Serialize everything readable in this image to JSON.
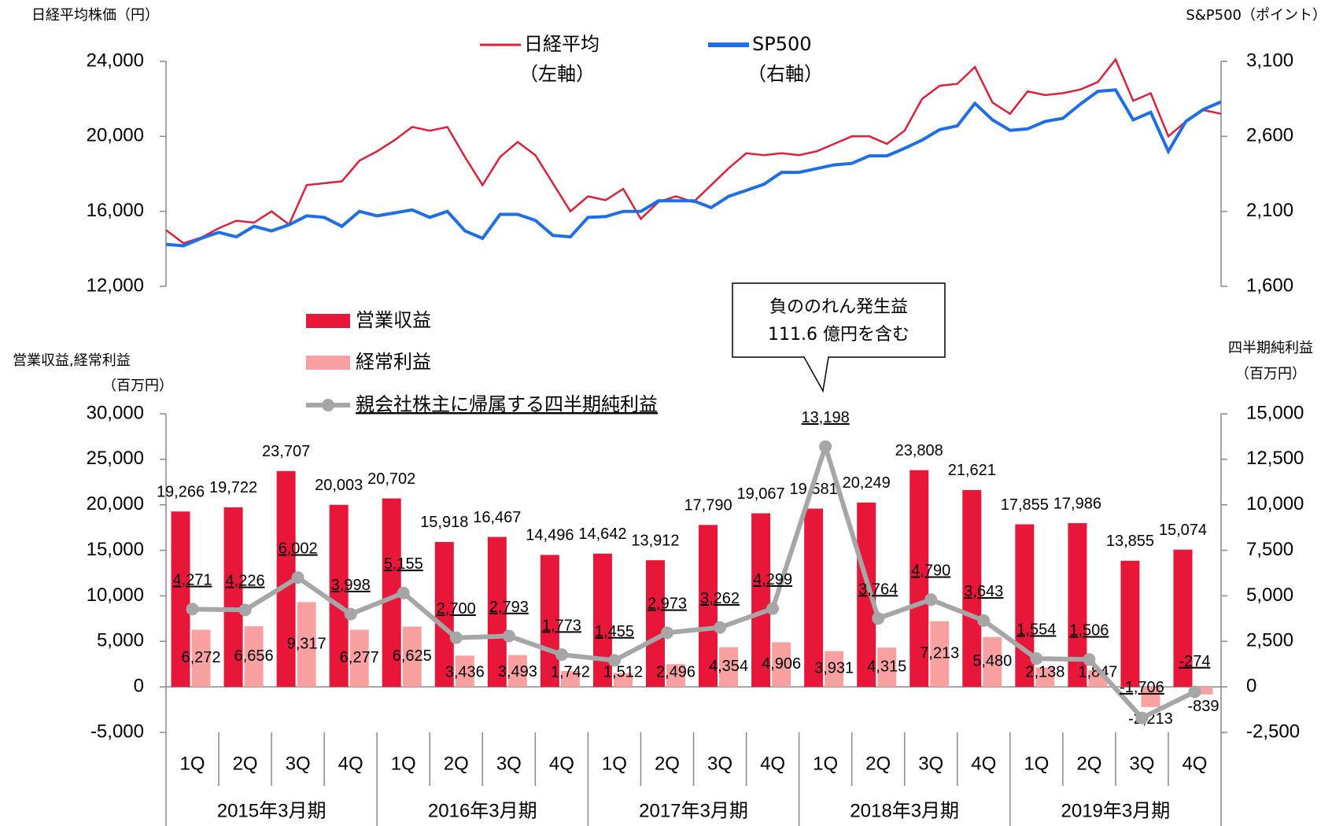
{
  "chart_data": [
    {
      "type": "line",
      "y_label": "日経平均株価（円）",
      "y2_label": "S&P500（ポイント）",
      "ylim": [
        12000,
        24000
      ],
      "yticks": [
        {
          "value": 12000,
          "label": "12,000"
        },
        {
          "value": 16000,
          "label": "16,000"
        },
        {
          "value": 20000,
          "label": "20,000"
        },
        {
          "value": 24000,
          "label": "24,000"
        }
      ],
      "y2lim": [
        1600,
        3100
      ],
      "y2ticks": [
        {
          "value": 1600,
          "label": "1,600"
        },
        {
          "value": 2100,
          "label": "2,100"
        },
        {
          "value": 2600,
          "label": "2,600"
        },
        {
          "value": 3100,
          "label": "3,100"
        }
      ],
      "series": [
        {
          "name": "日経平均",
          "legend_note": "（左軸）",
          "color": "#e0203a",
          "values": [
            15000,
            14300,
            14600,
            15100,
            15500,
            15400,
            16000,
            15300,
            17400,
            17500,
            17600,
            18700,
            19200,
            19800,
            20500,
            20300,
            20500,
            18900,
            17400,
            18900,
            19700,
            19000,
            17500,
            16000,
            16800,
            16600,
            17200,
            15600,
            16500,
            16800,
            16500,
            17400,
            18300,
            19100,
            19000,
            19100,
            19000,
            19200,
            19600,
            20000,
            20000,
            19600,
            20300,
            22000,
            22700,
            22800,
            23700,
            21800,
            21200,
            22400,
            22200,
            22300,
            22500,
            22900,
            24100,
            21900,
            22300,
            20000,
            20800,
            21400,
            21200
          ]
        },
        {
          "name": "SP500",
          "legend_note": "（右軸）",
          "color": "#1e6ee8",
          "axis": "y2",
          "values": [
            1880,
            1870,
            1920,
            1960,
            1930,
            2000,
            1970,
            2010,
            2070,
            2060,
            2000,
            2100,
            2070,
            2090,
            2110,
            2060,
            2100,
            1970,
            1920,
            2080,
            2080,
            2040,
            1940,
            1930,
            2060,
            2065,
            2100,
            2100,
            2170,
            2170,
            2170,
            2125,
            2200,
            2240,
            2280,
            2360,
            2360,
            2385,
            2410,
            2420,
            2470,
            2470,
            2520,
            2575,
            2645,
            2670,
            2820,
            2710,
            2640,
            2650,
            2700,
            2720,
            2815,
            2900,
            2910,
            2710,
            2760,
            2500,
            2700,
            2780,
            2830
          ]
        }
      ]
    },
    {
      "type": "bar_line",
      "y_label": "営業収益,経常利益",
      "y_unit": "（百万円）",
      "y2_label": "四半期純利益",
      "y2_unit": "（百万円）",
      "negative_color": "#ff0000",
      "categories": [
        "1Q",
        "2Q",
        "3Q",
        "4Q",
        "1Q",
        "2Q",
        "3Q",
        "4Q",
        "1Q",
        "2Q",
        "3Q",
        "4Q",
        "1Q",
        "2Q",
        "3Q",
        "4Q",
        "1Q",
        "2Q",
        "3Q",
        "4Q"
      ],
      "groups": [
        "2015年3月期",
        "2016年3月期",
        "2017年3月期",
        "2018年3月期",
        "2019年3月期"
      ],
      "ylim": [
        -5000,
        30000
      ],
      "yticks": [
        {
          "value": -5000,
          "label": "-5,000"
        },
        0,
        {
          "value": 5000,
          "label": "5,000"
        },
        {
          "value": 10000,
          "label": "10,000"
        },
        {
          "value": 15000,
          "label": "15,000"
        },
        {
          "value": 20000,
          "label": "20,000"
        },
        {
          "value": 25000,
          "label": "25,000"
        },
        {
          "value": 30000,
          "label": "30,000"
        }
      ],
      "y2lim": [
        -2500,
        15000
      ],
      "y2ticks": [
        {
          "value": -2500,
          "label": "-2,500"
        },
        0,
        {
          "value": 2500,
          "label": "2,500"
        },
        {
          "value": 5000,
          "label": "5,000"
        },
        {
          "value": 7500,
          "label": "7,500"
        },
        {
          "value": 10000,
          "label": "10,000"
        },
        {
          "value": 12500,
          "label": "12,500"
        },
        {
          "value": 15000,
          "label": "15,000"
        }
      ],
      "annotation": [
        "負ののれん発生益",
        "111.6 億円を含む"
      ],
      "series": [
        {
          "name": "営業収益",
          "type": "bar",
          "color": "#e8173a",
          "values": [
            19266,
            19722,
            23707,
            20003,
            20702,
            15918,
            16467,
            14496,
            14642,
            13912,
            17790,
            19067,
            19581,
            20249,
            23808,
            21621,
            17855,
            17986,
            13855,
            15074
          ],
          "value_labels": [
            "19,266",
            "19,722",
            "23,707",
            "20,003",
            "20,702",
            "15,918",
            "16,467",
            "14,496",
            "14,642",
            "13,912",
            "17,790",
            "19,067",
            "19,581",
            "20,249",
            "23,808",
            "21,621",
            "17,855",
            "17,986",
            "13,855",
            "15,074"
          ]
        },
        {
          "name": "経常利益",
          "type": "bar",
          "color": "#f9a0a0",
          "values": [
            6272,
            6656,
            9317,
            6277,
            6625,
            3436,
            3493,
            1742,
            1512,
            2496,
            4354,
            4906,
            3931,
            4315,
            7213,
            5480,
            2138,
            1847,
            -2213,
            -839
          ],
          "value_labels": [
            "6,272",
            "6,656",
            "9,317",
            "6,277",
            "6,625",
            "3,436",
            "3,493",
            "1,742",
            "1,512",
            "2,496",
            "4,354",
            "4,906",
            "3,931",
            "4,315",
            "7,213",
            "5,480",
            "2,138",
            "1,847",
            "-2,213",
            "-839"
          ]
        },
        {
          "name": "親会社株主に帰属する四半期純利益",
          "type": "line",
          "axis": "y2",
          "color": "#a6a6a6",
          "values": [
            4271,
            4226,
            6002,
            3998,
            5155,
            2700,
            2793,
            1773,
            1455,
            2973,
            3262,
            4299,
            13198,
            3764,
            4790,
            3643,
            1554,
            1506,
            -1706,
            -274
          ],
          "value_labels": [
            "4,271",
            "4,226",
            "6,002",
            "3,998",
            "5,155",
            "2,700",
            "2,793",
            "1,773",
            "1,455",
            "2,973",
            "3,262",
            "4,299",
            "13,198",
            "3,764",
            "4,790",
            "3,643",
            "1,554",
            "1,506",
            "-1,706",
            "-274"
          ]
        }
      ]
    }
  ]
}
